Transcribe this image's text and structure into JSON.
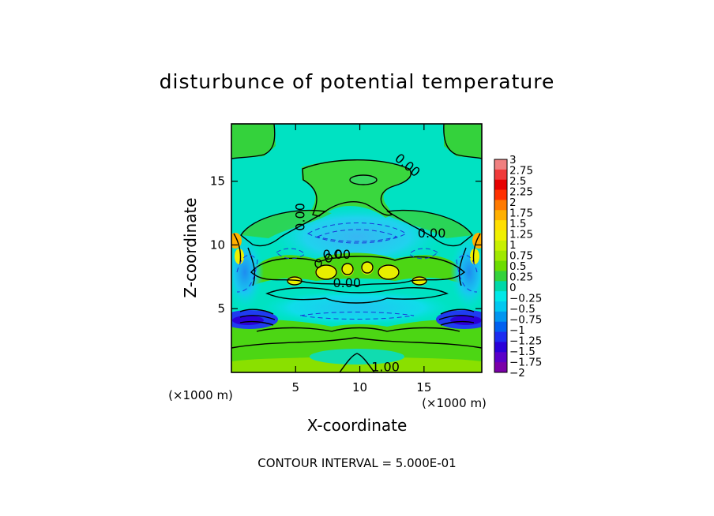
{
  "chart_data": {
    "type": "heatmap",
    "title": "disturbunce of potential temperature",
    "xlabel": "X-coordinate",
    "ylabel": "Z-coordinate",
    "x_unit_label": "(×1000 m)",
    "z_unit_label": "(×1000 m)",
    "xlim": [
      0,
      19.5
    ],
    "ylim": [
      0,
      19.5
    ],
    "x_ticks": [
      5,
      10,
      15
    ],
    "y_ticks": [
      5,
      10,
      15
    ],
    "footer": "CONTOUR INTERVAL = 5.000E-01",
    "contour_labels": [
      {
        "text": "0.00",
        "x": 13.5,
        "z": 16.0
      },
      {
        "text": "0.00",
        "x": 5.7,
        "z": 12.2
      },
      {
        "text": "0.00",
        "x": 15.6,
        "z": 10.6
      },
      {
        "text": "0.00",
        "x": 9.0,
        "z": 6.7
      },
      {
        "text": "0.00",
        "x": 8.2,
        "z": 8.9
      },
      {
        "text": "1.00",
        "x": 12.0,
        "z": 0.1
      }
    ],
    "colorbar": {
      "labels": [
        "3",
        "2.75",
        "2.5",
        "2.25",
        "2",
        "1.75",
        "1.5",
        "1.25",
        "1",
        "0.75",
        "0.5",
        "0.25",
        "0",
        "−0.25",
        "−0.5",
        "−0.75",
        "−1",
        "−1.25",
        "−1.5",
        "−1.75",
        "−2"
      ],
      "levels": [
        3,
        2.75,
        2.5,
        2.25,
        2,
        1.75,
        1.5,
        1.25,
        1,
        0.75,
        0.5,
        0.25,
        0,
        -0.25,
        -0.5,
        -0.75,
        -1,
        -1.25,
        -1.5,
        -1.75,
        -2
      ],
      "colors": [
        "#f08080",
        "#f03a3a",
        "#e60000",
        "#ff3000",
        "#ff7a00",
        "#ffb000",
        "#ffdf00",
        "#f0f000",
        "#c8f000",
        "#a0e800",
        "#6cdc00",
        "#34d23c",
        "#00d8a8",
        "#00e8e8",
        "#00c8f0",
        "#0096f0",
        "#0060f0",
        "#1c2cf0",
        "#2a00d8",
        "#5a00c8",
        "#7a00a8"
      ]
    }
  }
}
